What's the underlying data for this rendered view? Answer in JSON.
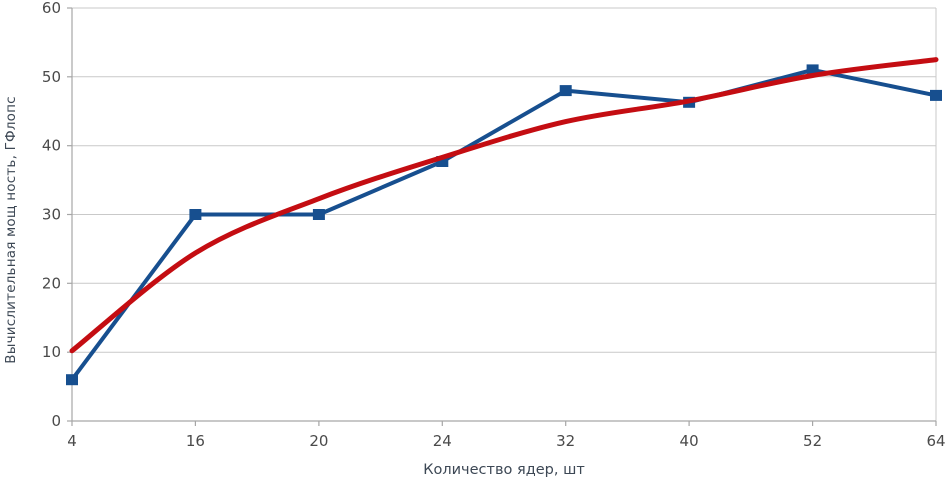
{
  "chart_data": {
    "type": "line",
    "title": "",
    "xlabel": "Количество ядер, шт",
    "ylabel": "Вычислительная мощ ность, ГФлопс",
    "categories": [
      "4",
      "16",
      "20",
      "24",
      "32",
      "40",
      "52",
      "64"
    ],
    "y_ticks": [
      0,
      10,
      20,
      30,
      40,
      50,
      60
    ],
    "ylim": [
      0,
      60
    ],
    "grid": "horizontal",
    "legend_position": "none",
    "series": [
      {
        "name": "series-blue-markers",
        "style": "polyline_with_square_markers",
        "color": "#174f8f",
        "values": [
          6,
          30,
          30,
          37.7,
          48,
          46.3,
          51,
          47.3
        ]
      },
      {
        "name": "trendline-red-smooth",
        "style": "smooth_logarithmic_trendline",
        "color": "#c40d12",
        "values": [
          10.2,
          24.4,
          32.3,
          38.3,
          43.5,
          46.5,
          50.2,
          52.5
        ]
      }
    ],
    "axis_colors": {
      "grid": "#c9c9c9",
      "axis": "#a6a6a6",
      "tick_label": "#4a4a4a",
      "axis_title": "#3d4855"
    }
  }
}
